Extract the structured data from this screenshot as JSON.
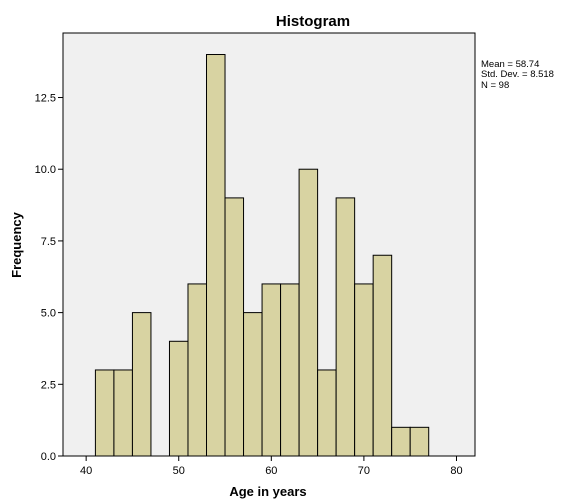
{
  "chart_data": {
    "type": "bar",
    "title": "Histogram",
    "xlabel": "Age in years",
    "ylabel": "Frequency",
    "xlim": [
      37.5,
      82
    ],
    "ylim": [
      0,
      14.75
    ],
    "bin_width": 2,
    "bins": [
      {
        "start": 41,
        "end": 43,
        "count": 3
      },
      {
        "start": 43,
        "end": 45,
        "count": 3
      },
      {
        "start": 45,
        "end": 47,
        "count": 5
      },
      {
        "start": 47,
        "end": 49,
        "count": 0
      },
      {
        "start": 49,
        "end": 51,
        "count": 4
      },
      {
        "start": 51,
        "end": 53,
        "count": 6
      },
      {
        "start": 53,
        "end": 55,
        "count": 14
      },
      {
        "start": 55,
        "end": 57,
        "count": 9
      },
      {
        "start": 57,
        "end": 59,
        "count": 5
      },
      {
        "start": 59,
        "end": 61,
        "count": 6
      },
      {
        "start": 61,
        "end": 63,
        "count": 6
      },
      {
        "start": 63,
        "end": 65,
        "count": 10
      },
      {
        "start": 65,
        "end": 67,
        "count": 3
      },
      {
        "start": 67,
        "end": 69,
        "count": 9
      },
      {
        "start": 69,
        "end": 71,
        "count": 6
      },
      {
        "start": 71,
        "end": 73,
        "count": 7
      },
      {
        "start": 73,
        "end": 75,
        "count": 1
      },
      {
        "start": 75,
        "end": 77,
        "count": 1
      }
    ],
    "x_ticks": [
      40,
      50,
      60,
      70,
      80
    ],
    "x_tick_labels": [
      "40",
      "50",
      "60",
      "70",
      "80"
    ],
    "y_ticks": [
      0,
      2.5,
      5,
      7.5,
      10,
      12.5
    ],
    "y_tick_labels": [
      "0.0",
      "2.5",
      "5.0",
      "7.5",
      "10.0",
      "12.5"
    ],
    "stats": [
      "Mean = 58.74",
      "Std. Dev. = 8.518",
      "N = 98"
    ],
    "grid": false,
    "colors": {
      "bar_fill": "#d8d3a2",
      "bar_stroke": "#000000",
      "plot_background": "#f0f0f0",
      "frame": "#000000"
    }
  }
}
